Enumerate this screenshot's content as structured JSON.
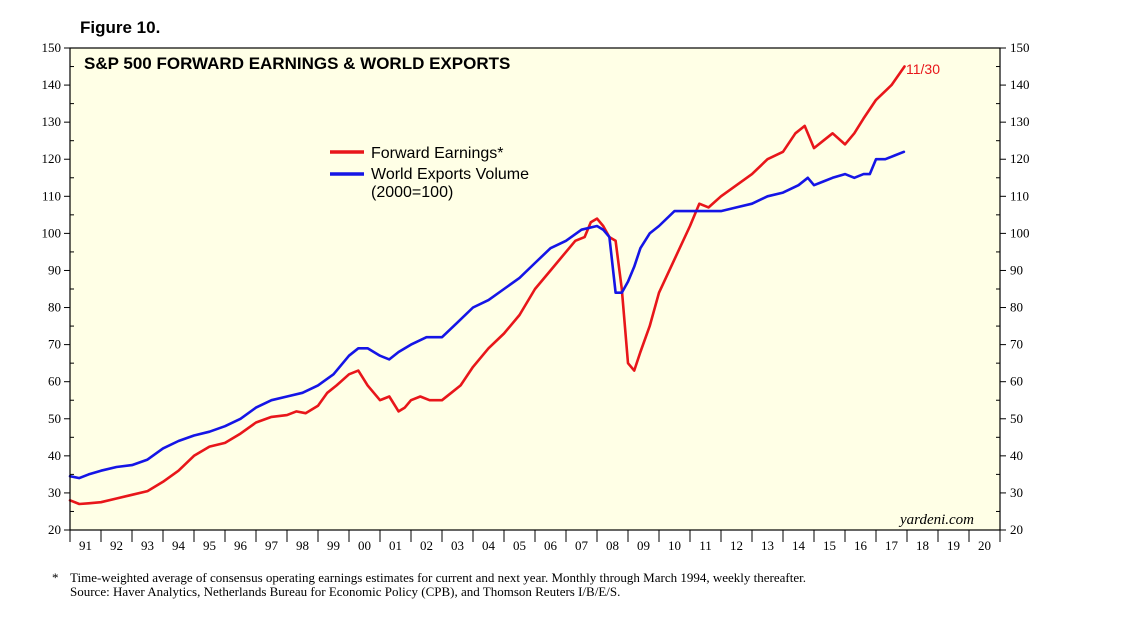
{
  "figure_label": "Figure 10.",
  "footnote": {
    "marker": "*",
    "line1": "Time-weighted average of consensus operating earnings estimates for current and next year. Monthly through March 1994, weekly thereafter.",
    "line2": "Source: Haver Analytics, Netherlands Bureau for Economic Policy (CPB), and Thomson Reuters I/B/E/S."
  },
  "colors": {
    "background": "#ffffe6",
    "earnings": "#e8161a",
    "exports": "#1515e6",
    "axis": "#000000"
  },
  "chart_data": {
    "type": "line",
    "title": "S&P 500 FORWARD EARNINGS & WORLD EXPORTS",
    "xlabel": "",
    "ylabel": "",
    "ylim": [
      20,
      150
    ],
    "xlim": [
      1991,
      2021
    ],
    "y_ticks": [
      20,
      30,
      40,
      50,
      60,
      70,
      80,
      90,
      100,
      110,
      120,
      130,
      140,
      150
    ],
    "x_tick_labels": [
      "91",
      "92",
      "93",
      "94",
      "95",
      "96",
      "97",
      "98",
      "99",
      "00",
      "01",
      "02",
      "03",
      "04",
      "05",
      "06",
      "07",
      "08",
      "09",
      "10",
      "11",
      "12",
      "13",
      "14",
      "15",
      "16",
      "17",
      "18",
      "19",
      "20"
    ],
    "grid": false,
    "legend_position": "upper-center",
    "end_label": "11/30",
    "watermark": "yardeni.com",
    "series": [
      {
        "name": "Forward Earnings*",
        "color": "#e8161a",
        "x": [
          1991.0,
          1991.3,
          1991.6,
          1992.0,
          1992.5,
          1993.0,
          1993.5,
          1994.0,
          1994.5,
          1995.0,
          1995.5,
          1996.0,
          1996.5,
          1997.0,
          1997.5,
          1998.0,
          1998.3,
          1998.6,
          1999.0,
          1999.3,
          1999.6,
          2000.0,
          2000.3,
          2000.6,
          2001.0,
          2001.3,
          2001.6,
          2001.8,
          2002.0,
          2002.3,
          2002.6,
          2002.8,
          2003.0,
          2003.3,
          2003.6,
          2004.0,
          2004.5,
          2005.0,
          2005.5,
          2006.0,
          2006.5,
          2007.0,
          2007.3,
          2007.6,
          2007.8,
          2008.0,
          2008.2,
          2008.4,
          2008.6,
          2008.8,
          2009.0,
          2009.2,
          2009.4,
          2009.7,
          2010.0,
          2010.5,
          2011.0,
          2011.3,
          2011.6,
          2012.0,
          2012.5,
          2013.0,
          2013.5,
          2014.0,
          2014.4,
          2014.7,
          2015.0,
          2015.3,
          2015.6,
          2016.0,
          2016.3,
          2016.6,
          2017.0,
          2017.5,
          2017.92
        ],
        "values": [
          28,
          27,
          27.2,
          27.5,
          28.5,
          29.5,
          30.5,
          33,
          36,
          40,
          42.5,
          43.5,
          46,
          49,
          50.5,
          51,
          52,
          51.5,
          53.5,
          57,
          59,
          62,
          63,
          59,
          55,
          56,
          52,
          53,
          55,
          56,
          55,
          55,
          55,
          57,
          59,
          64,
          69,
          73,
          78,
          85,
          90,
          95,
          98,
          99,
          103,
          104,
          102,
          99,
          98,
          85,
          65,
          63,
          68,
          75,
          84,
          93,
          102,
          108,
          107,
          110,
          113,
          116,
          120,
          122,
          127,
          129,
          123,
          125,
          127,
          124,
          127,
          131,
          136,
          140,
          145
        ]
      },
      {
        "name": "World Exports Volume (2000=100)",
        "color": "#1515e6",
        "x": [
          1991.0,
          1991.3,
          1991.6,
          1992.0,
          1992.5,
          1993.0,
          1993.5,
          1994.0,
          1994.5,
          1995.0,
          1995.5,
          1996.0,
          1996.5,
          1997.0,
          1997.5,
          1998.0,
          1998.5,
          1999.0,
          1999.5,
          2000.0,
          2000.3,
          2000.6,
          2001.0,
          2001.3,
          2001.6,
          2002.0,
          2002.5,
          2003.0,
          2003.5,
          2004.0,
          2004.5,
          2005.0,
          2005.5,
          2006.0,
          2006.5,
          2007.0,
          2007.5,
          2008.0,
          2008.2,
          2008.4,
          2008.6,
          2008.8,
          2009.0,
          2009.2,
          2009.4,
          2009.7,
          2010.0,
          2010.5,
          2011.0,
          2011.5,
          2012.0,
          2012.5,
          2013.0,
          2013.5,
          2014.0,
          2014.5,
          2014.8,
          2015.0,
          2015.3,
          2015.6,
          2016.0,
          2016.3,
          2016.6,
          2016.8,
          2017.0,
          2017.3,
          2017.6,
          2017.9
        ],
        "values": [
          34.5,
          34,
          35,
          36,
          37,
          37.5,
          39,
          42,
          44,
          45.5,
          46.5,
          48,
          50,
          53,
          55,
          56,
          57,
          59,
          62,
          67,
          69,
          69,
          67,
          66,
          68,
          70,
          72,
          72,
          76,
          80,
          82,
          85,
          88,
          92,
          96,
          98,
          101,
          102,
          101,
          99,
          84,
          84,
          87,
          91,
          96,
          100,
          102,
          106,
          106,
          106,
          106,
          107,
          108,
          110,
          111,
          113,
          115,
          113,
          114,
          115,
          116,
          115,
          116,
          116,
          120,
          120,
          121,
          122
        ]
      }
    ]
  }
}
